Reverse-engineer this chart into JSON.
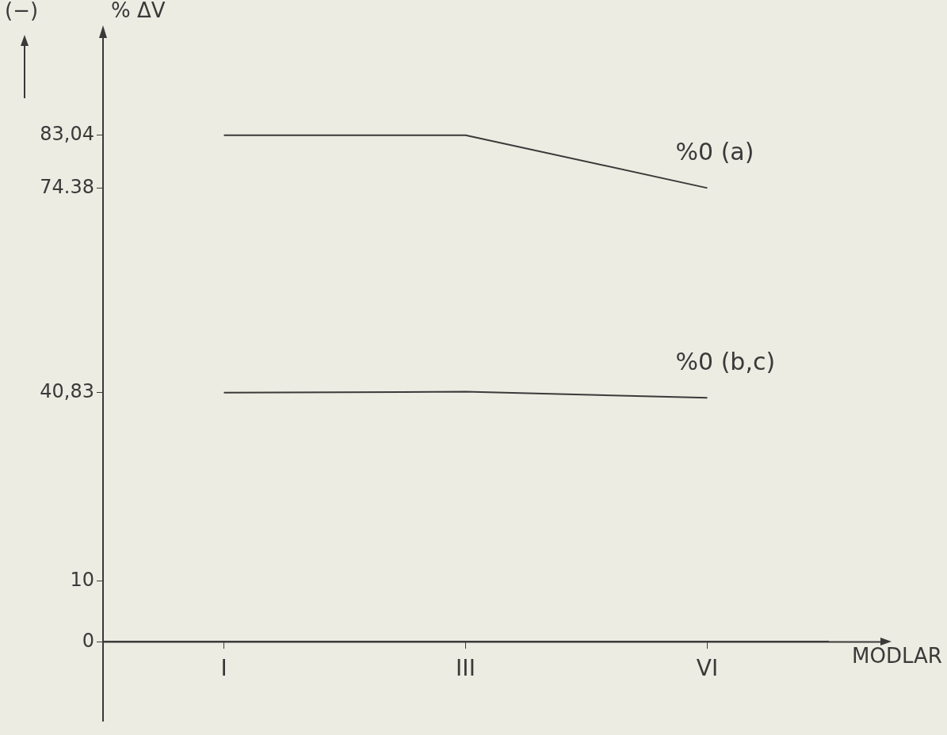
{
  "chart_data": {
    "type": "line",
    "ylabel": "% ΔV",
    "xlabel": "MODLAR",
    "categories": [
      "I",
      "III",
      "VI"
    ],
    "series": [
      {
        "name": "%0 (a)",
        "color": "#3a3a3a",
        "values": [
          83.04,
          83.04,
          74.38
        ]
      },
      {
        "name": "%0 (b,c)",
        "color": "#3a3a3a",
        "values": [
          40.83,
          41,
          40
        ]
      }
    ],
    "ylim": [
      -13,
      100
    ],
    "yticks": [
      0,
      10,
      {
        "value": 40.83,
        "label": "40,83"
      },
      {
        "value": 74.38,
        "label": "74.38"
      },
      {
        "value": 83.04,
        "label": "83,04"
      }
    ],
    "annotations": [
      "(−)"
    ],
    "grid": false,
    "legend": false
  }
}
